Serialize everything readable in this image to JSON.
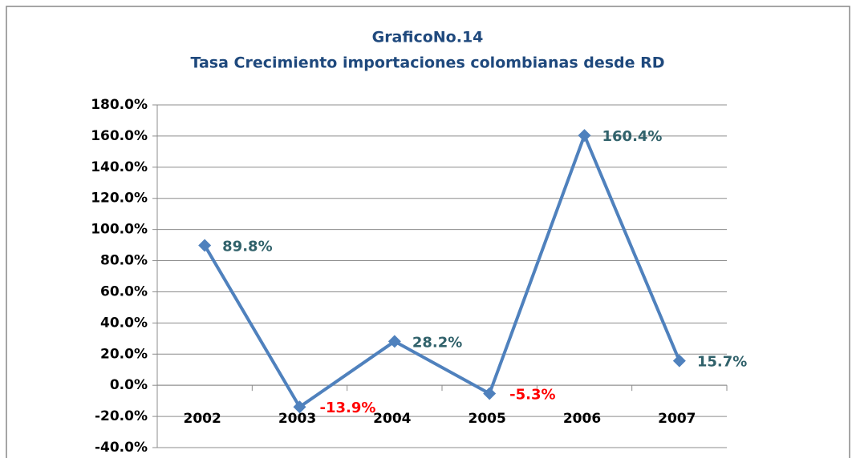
{
  "chart_data": {
    "type": "line",
    "title": "GraficoNo.14",
    "subtitle": "Tasa Crecimiento importaciones colombianas desde RD",
    "categories": [
      "2002",
      "2003",
      "2004",
      "2005",
      "2006",
      "2007"
    ],
    "values": [
      89.8,
      -13.9,
      28.2,
      -5.3,
      160.4,
      15.7
    ],
    "value_labels": [
      "89.8%",
      "-13.9%",
      "28.2%",
      "-5.3%",
      "160.4%",
      "15.7%"
    ],
    "color": "#4f81bd",
    "ylim": [
      -40,
      180
    ],
    "yticks": [
      {
        "value": -40,
        "label": "-40.0%"
      },
      {
        "value": -20,
        "label": "-20.0%"
      },
      {
        "value": 0,
        "label": "0.0%"
      },
      {
        "value": 20,
        "label": "20.0%"
      },
      {
        "value": 40,
        "label": "40.0%"
      },
      {
        "value": 60,
        "label": "60.0%"
      },
      {
        "value": 80,
        "label": "80.0%"
      },
      {
        "value": 100,
        "label": "100.0%"
      },
      {
        "value": 120,
        "label": "120.0%"
      },
      {
        "value": 140,
        "label": "140.0%"
      },
      {
        "value": 160,
        "label": "160.0%"
      },
      {
        "value": 180,
        "label": "180.0%"
      }
    ],
    "grid": true
  }
}
